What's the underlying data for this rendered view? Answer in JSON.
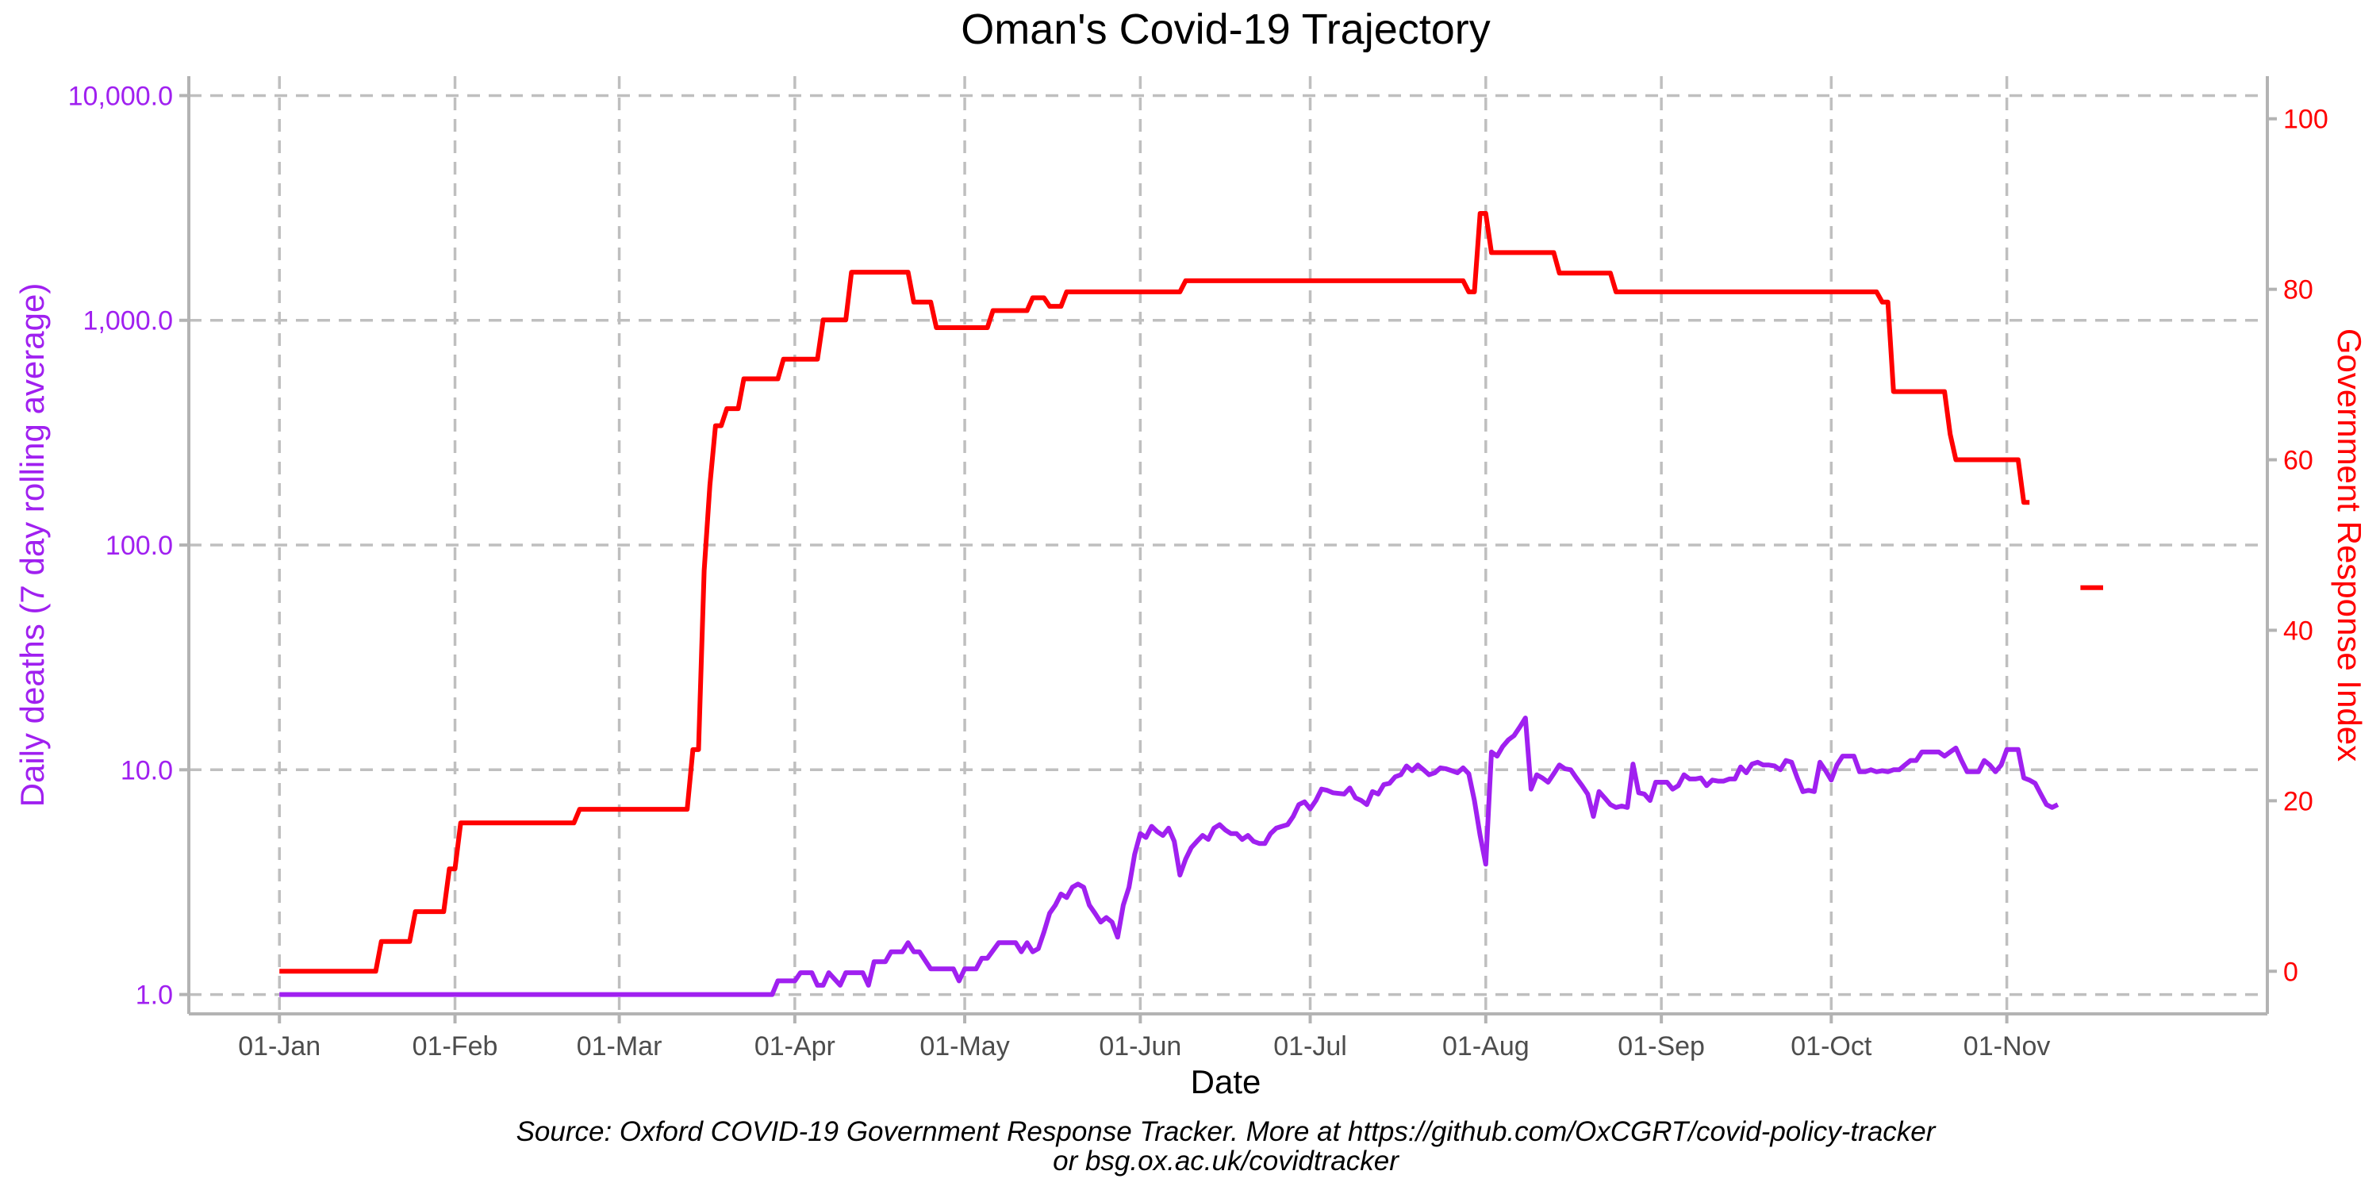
{
  "chart_data": {
    "type": "line",
    "title": "Oman's Covid-19 Trajectory",
    "xlabel": "Date",
    "ylabel_left": "Daily deaths (7 day rolling average)",
    "ylabel_right": "Government Response Index",
    "caption_line1": "Source: Oxford COVID-19 Government Response Tracker. More at https://github.com/OxCGRT/covid-policy-tracker",
    "caption_line2": "or bsg.ox.ac.uk/covidtracker",
    "x_ticks": [
      {
        "label": "01-Jan",
        "day": 1
      },
      {
        "label": "01-Feb",
        "day": 32
      },
      {
        "label": "01-Mar",
        "day": 61
      },
      {
        "label": "01-Apr",
        "day": 92
      },
      {
        "label": "01-May",
        "day": 122
      },
      {
        "label": "01-Jun",
        "day": 153
      },
      {
        "label": "01-Jul",
        "day": 183
      },
      {
        "label": "01-Aug",
        "day": 214
      },
      {
        "label": "01-Sep",
        "day": 245
      },
      {
        "label": "01-Oct",
        "day": 275
      },
      {
        "label": "01-Nov",
        "day": 306
      }
    ],
    "y_left": {
      "scale": "log10",
      "range": [
        0.82,
        12200
      ],
      "ticks": [
        {
          "value": 1,
          "label": "1.0"
        },
        {
          "value": 10,
          "label": "10.0"
        },
        {
          "value": 100,
          "label": "100.0"
        },
        {
          "value": 1000,
          "label": "1,000.0"
        },
        {
          "value": 10000,
          "label": "10,000.0"
        }
      ]
    },
    "y_right": {
      "scale": "linear",
      "range": [
        -5,
        105
      ],
      "ticks": [
        0,
        20,
        40,
        60,
        80,
        100
      ]
    },
    "x_range": [
      -15,
      352
    ],
    "grid": true,
    "colors": {
      "deaths": "#a020f0",
      "index": "#ff0000",
      "grid": "#bfbfbf",
      "axis": "#b3b3b3",
      "x_tick_text": "#4d4d4d"
    },
    "series": [
      {
        "name": "Daily deaths (7 day rolling average)",
        "axis": "left",
        "points": [
          [
            1,
            1
          ],
          [
            88,
            1
          ],
          [
            89,
            1.15
          ],
          [
            92,
            1.15
          ],
          [
            93,
            1.25
          ],
          [
            95,
            1.25
          ],
          [
            96,
            1.1
          ],
          [
            97,
            1.1
          ],
          [
            98,
            1.25
          ],
          [
            100,
            1.1
          ],
          [
            101,
            1.25
          ],
          [
            104,
            1.25
          ],
          [
            105,
            1.1
          ],
          [
            106,
            1.4
          ],
          [
            108,
            1.4
          ],
          [
            109,
            1.55
          ],
          [
            111,
            1.55
          ],
          [
            112,
            1.7
          ],
          [
            113,
            1.55
          ],
          [
            114,
            1.55
          ],
          [
            116,
            1.3
          ],
          [
            120,
            1.3
          ],
          [
            121,
            1.15
          ],
          [
            122,
            1.3
          ],
          [
            124,
            1.3
          ],
          [
            125,
            1.45
          ],
          [
            126,
            1.45
          ],
          [
            128,
            1.7
          ],
          [
            131,
            1.7
          ],
          [
            132,
            1.55
          ],
          [
            133,
            1.7
          ],
          [
            134,
            1.55
          ],
          [
            135,
            1.6
          ],
          [
            136,
            1.9
          ],
          [
            137,
            2.3
          ],
          [
            138,
            2.5
          ],
          [
            139,
            2.8
          ],
          [
            140,
            2.7
          ],
          [
            141,
            3.0
          ],
          [
            142,
            3.1
          ],
          [
            143,
            3.0
          ],
          [
            144,
            2.5
          ],
          [
            145,
            2.3
          ],
          [
            146,
            2.1
          ],
          [
            147,
            2.2
          ],
          [
            148,
            2.1
          ],
          [
            149,
            1.8
          ],
          [
            150,
            2.5
          ],
          [
            151,
            3.0
          ],
          [
            152,
            4.2
          ],
          [
            153,
            5.2
          ],
          [
            154,
            5.0
          ],
          [
            155,
            5.6
          ],
          [
            156,
            5.3
          ],
          [
            157,
            5.1
          ],
          [
            158,
            5.5
          ],
          [
            159,
            4.8
          ],
          [
            160,
            3.4
          ],
          [
            161,
            4.0
          ],
          [
            162,
            4.5
          ],
          [
            163,
            4.8
          ],
          [
            164,
            5.1
          ],
          [
            165,
            4.9
          ],
          [
            166,
            5.5
          ],
          [
            167,
            5.7
          ],
          [
            168,
            5.4
          ],
          [
            169,
            5.2
          ],
          [
            170,
            5.2
          ],
          [
            171,
            4.9
          ],
          [
            172,
            5.1
          ],
          [
            173,
            4.8
          ],
          [
            174,
            4.7
          ],
          [
            175,
            4.7
          ],
          [
            176,
            5.2
          ],
          [
            177,
            5.5
          ],
          [
            178,
            5.6
          ],
          [
            179,
            5.7
          ],
          [
            180,
            6.2
          ],
          [
            181,
            7.0
          ],
          [
            182,
            7.2
          ],
          [
            183,
            6.7
          ],
          [
            184,
            7.3
          ],
          [
            185,
            8.2
          ],
          [
            186,
            8.1
          ],
          [
            187,
            7.9
          ],
          [
            189,
            7.8
          ],
          [
            190,
            8.3
          ],
          [
            191,
            7.5
          ],
          [
            192,
            7.3
          ],
          [
            193,
            7.0
          ],
          [
            194,
            8.0
          ],
          [
            195,
            7.8
          ],
          [
            196,
            8.6
          ],
          [
            197,
            8.7
          ],
          [
            198,
            9.3
          ],
          [
            199,
            9.5
          ],
          [
            200,
            10.4
          ],
          [
            201,
            9.9
          ],
          [
            202,
            10.5
          ],
          [
            203,
            10.0
          ],
          [
            204,
            9.5
          ],
          [
            205,
            9.7
          ],
          [
            206,
            10.2
          ],
          [
            207,
            10.1
          ],
          [
            208,
            9.9
          ],
          [
            209,
            9.7
          ],
          [
            210,
            10.2
          ],
          [
            211,
            9.6
          ],
          [
            212,
            7.3
          ],
          [
            213,
            5.1
          ],
          [
            214,
            3.8
          ],
          [
            215,
            12.0
          ],
          [
            216,
            11.5
          ],
          [
            217,
            12.7
          ],
          [
            218,
            13.6
          ],
          [
            219,
            14.2
          ],
          [
            220,
            15.5
          ],
          [
            221,
            17.0
          ],
          [
            222,
            8.2
          ],
          [
            223,
            9.5
          ],
          [
            224,
            9.2
          ],
          [
            225,
            8.8
          ],
          [
            226,
            9.6
          ],
          [
            227,
            10.5
          ],
          [
            228,
            10.1
          ],
          [
            229,
            10.0
          ],
          [
            230,
            9.2
          ],
          [
            231,
            8.5
          ],
          [
            232,
            7.8
          ],
          [
            233,
            6.2
          ],
          [
            234,
            8.0
          ],
          [
            235,
            7.5
          ],
          [
            236,
            7.0
          ],
          [
            237,
            6.8
          ],
          [
            238,
            6.9
          ],
          [
            239,
            6.8
          ],
          [
            240,
            10.6
          ],
          [
            241,
            7.9
          ],
          [
            242,
            7.8
          ],
          [
            243,
            7.3
          ],
          [
            244,
            8.8
          ],
          [
            245,
            8.8
          ],
          [
            246,
            8.8
          ],
          [
            247,
            8.2
          ],
          [
            248,
            8.5
          ],
          [
            249,
            9.5
          ],
          [
            250,
            9.1
          ],
          [
            251,
            9.1
          ],
          [
            252,
            9.2
          ],
          [
            253,
            8.5
          ],
          [
            254,
            9.0
          ],
          [
            255,
            8.9
          ],
          [
            256,
            8.9
          ],
          [
            257,
            9.1
          ],
          [
            258,
            9.1
          ],
          [
            259,
            10.3
          ],
          [
            260,
            9.7
          ],
          [
            261,
            10.6
          ],
          [
            262,
            10.8
          ],
          [
            263,
            10.5
          ],
          [
            264,
            10.5
          ],
          [
            265,
            10.4
          ],
          [
            266,
            10.0
          ],
          [
            267,
            11.0
          ],
          [
            268,
            10.8
          ],
          [
            269,
            9.2
          ],
          [
            270,
            8.0
          ],
          [
            271,
            8.1
          ],
          [
            272,
            8.0
          ],
          [
            273,
            10.8
          ],
          [
            274,
            9.9
          ],
          [
            275,
            9.0
          ],
          [
            276,
            10.5
          ],
          [
            277,
            11.5
          ],
          [
            278,
            11.5
          ],
          [
            279,
            11.5
          ],
          [
            280,
            9.8
          ],
          [
            281,
            9.8
          ],
          [
            282,
            10.0
          ],
          [
            283,
            9.8
          ],
          [
            284,
            9.9
          ],
          [
            285,
            9.8
          ],
          [
            286,
            10.0
          ],
          [
            287,
            10.0
          ],
          [
            288,
            10.5
          ],
          [
            289,
            11.0
          ],
          [
            290,
            11.0
          ],
          [
            291,
            12.0
          ],
          [
            292,
            12.0
          ],
          [
            293,
            12.0
          ],
          [
            294,
            12.0
          ],
          [
            295,
            11.5
          ],
          [
            296,
            12.0
          ],
          [
            297,
            12.5
          ],
          [
            298,
            11.0
          ],
          [
            299,
            9.8
          ],
          [
            300,
            9.8
          ],
          [
            301,
            9.8
          ],
          [
            302,
            11.0
          ],
          [
            303,
            10.5
          ],
          [
            304,
            9.8
          ],
          [
            305,
            10.5
          ],
          [
            306,
            12.3
          ],
          [
            307,
            12.3
          ],
          [
            308,
            12.3
          ],
          [
            309,
            9.2
          ],
          [
            310,
            9.0
          ],
          [
            311,
            8.7
          ],
          [
            312,
            7.8
          ],
          [
            313,
            7.0
          ],
          [
            314,
            6.8
          ],
          [
            315,
            7.0
          ]
        ]
      },
      {
        "name": "Government Response Index",
        "axis": "right",
        "segments": [
          [
            [
              1,
              0
            ],
            [
              18,
              0
            ],
            [
              19,
              3.5
            ],
            [
              24,
              3.5
            ],
            [
              25,
              7
            ],
            [
              30,
              7
            ],
            [
              31,
              12
            ],
            [
              32,
              12
            ],
            [
              33,
              17.4
            ],
            [
              53,
              17.4
            ],
            [
              54,
              19
            ],
            [
              73,
              19
            ],
            [
              74,
              26
            ],
            [
              75,
              26
            ],
            [
              76,
              47
            ],
            [
              77,
              57
            ],
            [
              78,
              64
            ],
            [
              79,
              64
            ],
            [
              80,
              66
            ],
            [
              82,
              66
            ],
            [
              83,
              69.5
            ],
            [
              89,
              69.5
            ],
            [
              90,
              71.8
            ],
            [
              96,
              71.8
            ],
            [
              97,
              76.4
            ],
            [
              101,
              76.4
            ],
            [
              102,
              82
            ],
            [
              112,
              82
            ],
            [
              113,
              78.5
            ],
            [
              116,
              78.5
            ],
            [
              117,
              75.5
            ],
            [
              126,
              75.5
            ],
            [
              127,
              77.5
            ],
            [
              133,
              77.5
            ],
            [
              134,
              79
            ],
            [
              136,
              79
            ],
            [
              137,
              78
            ],
            [
              139,
              78
            ],
            [
              140,
              79.7
            ],
            [
              160,
              79.7
            ],
            [
              161,
              81
            ],
            [
              210,
              81
            ],
            [
              211,
              79.7
            ],
            [
              212,
              79.7
            ],
            [
              213,
              88.9
            ],
            [
              214,
              88.9
            ],
            [
              215,
              84.3
            ],
            [
              226,
              84.3
            ],
            [
              227,
              81.9
            ],
            [
              236,
              81.9
            ],
            [
              237,
              79.7
            ],
            [
              283,
              79.7
            ],
            [
              284,
              78.5
            ],
            [
              285,
              78.5
            ],
            [
              286,
              68
            ],
            [
              295,
              68
            ],
            [
              296,
              63
            ],
            [
              297,
              60
            ],
            [
              308,
              60
            ],
            [
              309,
              55
            ],
            [
              310,
              55
            ]
          ],
          [
            [
              319,
              45
            ],
            [
              323,
              45
            ]
          ]
        ]
      }
    ]
  }
}
